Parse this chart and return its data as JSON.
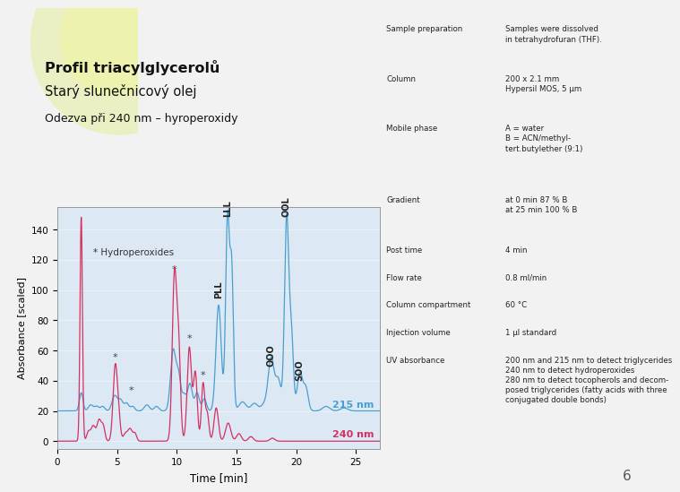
{
  "title_bold": "Profil triacylglycerolů",
  "title_sub": "Starý slunečnicový olej",
  "subtitle": "Odezva při 240 nm – hyroperoxidy",
  "slide_number": "6",
  "bg_color": "#f2f2f2",
  "plot_bg": "#dce9f5",
  "color_215": "#4a9ecf",
  "color_240": "#d63060",
  "xlabel": "Time [min]",
  "ylabel": "Absorbance [scaled]",
  "xmin": 0,
  "xmax": 27,
  "ymin": -5,
  "ymax": 155,
  "yticks": [
    0,
    20,
    40,
    60,
    80,
    100,
    120,
    140
  ],
  "xticks": [
    0,
    5,
    10,
    15,
    20,
    25
  ],
  "label_215": "215 nm",
  "label_240": "240 nm",
  "table_data": [
    [
      "Sample preparation",
      "Samples were dissolved\nin tetrahydrofuran (THF)."
    ],
    [
      "Column",
      "200 x 2.1 mm\nHypersil MOS, 5 μm"
    ],
    [
      "Mobile phase",
      "A = water\nB = ACN/methyl-\ntert.butylether (9:1)"
    ],
    [
      "Gradient",
      "at 0 min 87 % B\nat 25 min 100 % B"
    ],
    [
      "Post time",
      "4 min"
    ],
    [
      "Flow rate",
      "0.8 ml/min"
    ],
    [
      "Column compartment",
      "60 °C"
    ],
    [
      "Injection volume",
      "1 μl standard"
    ],
    [
      "UV absorbance",
      "200 nm and 215 nm to detect triglycerides\n240 nm to detect hydroperoxides\n280 nm to detect tocopherols and decom-\nposed triglycerides (fatty acids with three\nconjugated double bonds)"
    ]
  ]
}
